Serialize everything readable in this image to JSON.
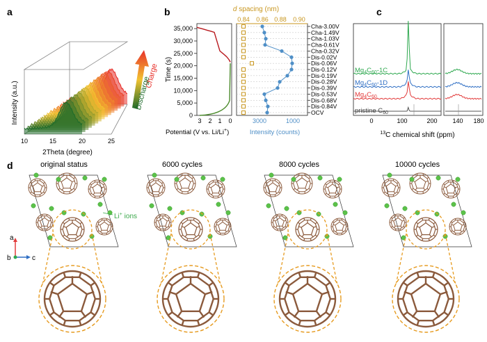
{
  "panels": {
    "a": "a",
    "b": "b",
    "c": "c",
    "d": "d"
  },
  "panel_a": {
    "ylabel": "Intensity (a.u.)",
    "xlabel": "2Theta (degree)",
    "xticks": [
      "10",
      "15",
      "20",
      "25"
    ],
    "arrow_up_label": "Charge",
    "arrow_down_label": "Discharge",
    "colors": {
      "charge": "#e8302a",
      "mid": "#f2c230",
      "discharge": "#1f6b2a"
    }
  },
  "panel_b": {
    "top_xlabel_italic": "d",
    "top_xlabel_rest": " spacing (nm)",
    "top_xticks": [
      "0.84",
      "0.86",
      "0.88",
      "0.90"
    ],
    "ylabel": "Time (s)",
    "yticks": [
      "0",
      "5,000",
      "10,000",
      "15,000",
      "20,000",
      "25,000",
      "30,000",
      "35,000"
    ],
    "potential_xticks": [
      "3",
      "2",
      "1",
      "0"
    ],
    "potential_xlabel": "Potential (V vs. Li/Li",
    "potential_xlabel_sup": "+",
    "potential_xlabel_end": ")",
    "intensity_xticks": [
      "3000",
      "1000"
    ],
    "intensity_xlabel": "Intensity (counts)",
    "states": [
      "OCV",
      "Dis-0.84V",
      "Dis-0.68V",
      "Dis-0.53V",
      "Dis-0.39V",
      "Dis-0.28V",
      "Dis-0.19V",
      "Dis-0.12V",
      "Dis-0.06V",
      "Dis-0.02V",
      "Cha-0.32V",
      "Cha-0.61V",
      "Cha-1.03V",
      "Cha-1.49V",
      "Cha-3.00V"
    ],
    "colors": {
      "discharge": "#4a8a2a",
      "charge": "#b8191e",
      "dspacing": "#c8961e",
      "intensity": "#4f8fc7"
    }
  },
  "panel_c": {
    "xlabel_pre": "13",
    "xlabel_rest": "C chemical shift (ppm)",
    "xticks": [
      "0",
      "100",
      "200",
      "140",
      "180"
    ],
    "series": [
      {
        "label_main": "Mg",
        "label_sub1": "4",
        "label_mid": "C",
        "label_sub2": "60",
        "label_end": "-1C",
        "color": "#2ea84f"
      },
      {
        "label_main": "Mg",
        "label_sub1": "4",
        "label_mid": "C",
        "label_sub2": "60",
        "label_end": "-1D",
        "color": "#2f6fc4"
      },
      {
        "label_main": "Mg",
        "label_sub1": "4",
        "label_mid": "C",
        "label_sub2": "60",
        "label_end": "",
        "color": "#e23a3a"
      },
      {
        "label_main": "pristine C",
        "label_sub1": "",
        "label_mid": "",
        "label_sub2": "60",
        "label_end": "",
        "color": "#555555"
      }
    ]
  },
  "panel_d": {
    "titles": [
      "original status",
      "6000 cycles",
      "8000 cycles",
      "10000 cycles"
    ],
    "li_label": "Li",
    "li_sup": "+",
    "li_rest": " ions",
    "axes": {
      "a": "a",
      "b": "b",
      "c": "c"
    },
    "colors": {
      "bond": "#8b5a3c",
      "li": "#5cc24a",
      "dash": "#e69a1e"
    }
  },
  "chart_data": [
    {
      "type": "line",
      "title": "",
      "xlabel": "2Theta (degree)",
      "ylabel": "Intensity (a.u.)",
      "xlim": [
        10,
        25
      ],
      "series_note": "15 stacked XRD patterns from discharge (green) to charge (red)"
    },
    {
      "type": "line",
      "title": "",
      "ylabel": "Time (s)",
      "ylim": [
        0,
        37000
      ],
      "series": [
        {
          "name": "discharge potential",
          "x": [
            3.0,
            1.2,
            0.6,
            0.3,
            0.15,
            0.05,
            0.02,
            0.01
          ],
          "y": [
            0,
            1500,
            4000,
            8000,
            12000,
            16000,
            19500,
            21000
          ]
        },
        {
          "name": "charge potential",
          "x": [
            0.05,
            0.35,
            0.6,
            0.9,
            1.3,
            2.0,
            3.0
          ],
          "y": [
            21500,
            23000,
            25000,
            27500,
            31000,
            34000,
            35000
          ]
        },
        {
          "name": "d spacing (nm)",
          "x": [
            0.845,
            0.845,
            0.845,
            0.845,
            0.845,
            0.845,
            0.845,
            0.845,
            0.845,
            0.845,
            0.845,
            0.845,
            0.845,
            0.845,
            0.845
          ],
          "y": [
            0,
            2500,
            5000,
            7500,
            10000,
            12500,
            15000,
            17500,
            20000,
            22500,
            25000,
            27500,
            30000,
            32500,
            35000
          ]
        },
        {
          "name": "Intensity (counts)",
          "x": [
            2000,
            2100,
            2000,
            1900,
            1500,
            1300,
            1250,
            1200,
            1200,
            1300,
            1700,
            2300,
            2300,
            2200,
            2000
          ],
          "y": [
            0,
            2000,
            4500,
            7000,
            9500,
            11500,
            13500,
            15500,
            17500,
            20000,
            22500,
            25000,
            27500,
            30000,
            32500
          ]
        }
      ]
    },
    {
      "type": "line",
      "title": "",
      "xlabel": "13C chemical shift (ppm)",
      "peaks_ppm": [
        143
      ],
      "series": [
        {
          "name": "Mg4C60-1C"
        },
        {
          "name": "Mg4C60-1D"
        },
        {
          "name": "Mg4C60"
        },
        {
          "name": "pristine C60"
        }
      ]
    }
  ]
}
